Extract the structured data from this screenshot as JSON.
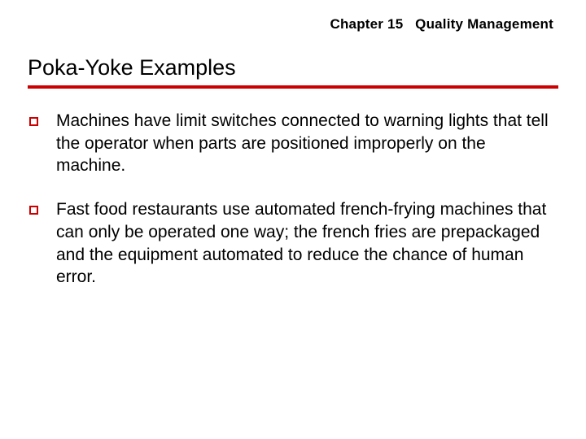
{
  "header": {
    "chapter_label": "Chapter 15",
    "chapter_title": "Quality Management"
  },
  "slide": {
    "title": "Poka-Yoke Examples",
    "rule_color": "#cc0000",
    "bullet_marker_color": "#cc0000",
    "background_color": "#ffffff",
    "title_fontsize": 27,
    "body_fontsize": 21,
    "header_fontsize": 17,
    "bullets": [
      {
        "text": "Machines have limit switches connected to warning lights that tell the operator when parts are positioned improperly on the machine."
      },
      {
        "text": "Fast food restaurants use automated french-frying machines that can only be operated one way; the french fries are prepackaged and the equipment automated to reduce the chance of human error."
      }
    ]
  }
}
